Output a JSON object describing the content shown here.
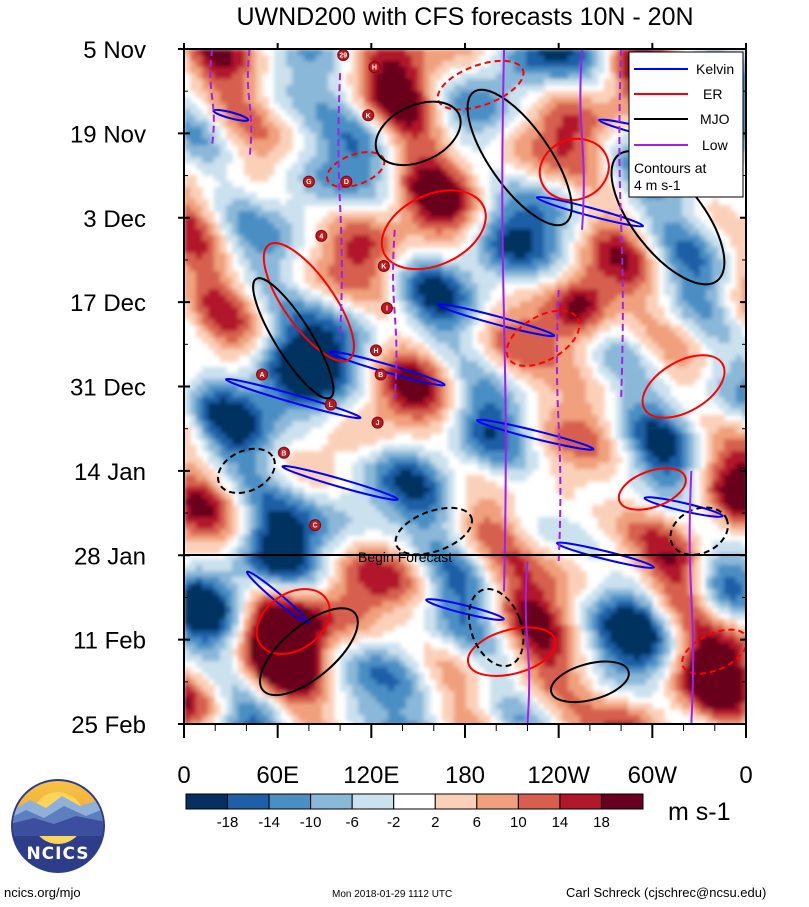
{
  "chart_data": {
    "type": "heatmap",
    "title": "UWND200 with CFS forecasts  10N - 20N",
    "y_tick_labels": [
      "5 Nov",
      "19 Nov",
      "3 Dec",
      "17 Dec",
      "31 Dec",
      "14 Jan",
      "28 Jan",
      "11 Feb",
      "25 Feb"
    ],
    "x_tick_labels": [
      "0",
      "60E",
      "120E",
      "180",
      "120W",
      "60W",
      "0"
    ],
    "x_range_deg_east": [
      0,
      360
    ],
    "y_range_days": [
      0,
      112
    ],
    "colorbar": {
      "units": "m s-1",
      "tick_labels": [
        "-18",
        "-14",
        "-10",
        "-6",
        "-2",
        "2",
        "6",
        "10",
        "14",
        "18"
      ],
      "colors": [
        "#053061",
        "#1f5fa6",
        "#4a8fc4",
        "#8ab8d8",
        "#cbe1ee",
        "#ffffff",
        "#fbd0b9",
        "#f0a07c",
        "#d6604d",
        "#b2182b",
        "#67001f"
      ]
    },
    "legend": {
      "position": "top-right",
      "entries": [
        {
          "name": "Kelvin",
          "color": "#0000ff"
        },
        {
          "name": "ER",
          "color": "#ff0000"
        },
        {
          "name": "MJO",
          "color": "#000000"
        },
        {
          "name": "Low",
          "color": "#a020f0"
        }
      ],
      "note_line1": "Contours at",
      "note_line2": "4 m s-1"
    },
    "forecast_start_label": "Begin Forecast",
    "forecast_start_day": 84,
    "storm_markers": [
      "29",
      "H",
      "K",
      "G",
      "D",
      "4",
      "K",
      "I",
      "H",
      "A",
      "B",
      "L",
      "J",
      "B",
      "C"
    ]
  },
  "logo": {
    "text": "NCICS"
  },
  "footer": {
    "left": "ncics.org/mjo",
    "center": "Mon 2018-01-29 1112 UTC",
    "right": "Carl Schreck (cjschrec@ncsu.edu)"
  }
}
